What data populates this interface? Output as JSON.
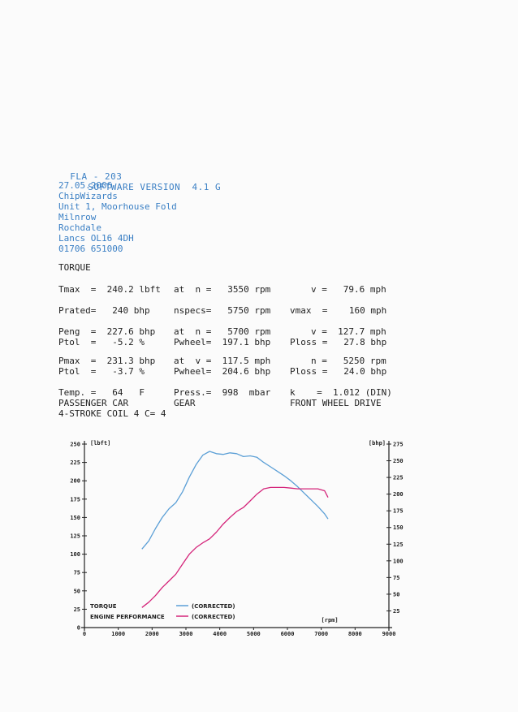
{
  "header": {
    "model": "FLA - 203",
    "software": "SOFTWARE VERSION  4.1 G"
  },
  "address": [
    "27.05.2006",
    "ChipWizards",
    "Unit 1, Moorhouse Fold",
    "Milnrow",
    "Rochdale",
    "Lancs OL16 4DH",
    "01706 651000"
  ],
  "section_title": "TORQUE",
  "report_rows": [
    [
      [
        "Tmax  =  240.2 lbft",
        0
      ],
      [
        "at  n =   3550 rpm",
        142
      ],
      [
        "v =   79.6 mph",
        311
      ]
    ],
    [
      [
        "Prated=   240 bhp",
        0
      ],
      [
        "nspecs=   5750 rpm",
        142
      ],
      [
        "vmax  =    160 mph",
        285
      ]
    ],
    [
      [
        "Peng  =  227.6 bhp",
        0
      ],
      [
        "at  n =   5700 rpm",
        142
      ],
      [
        "v =  127.7 mph",
        311
      ]
    ],
    [
      [
        "Ptol  =   -5.2 %",
        0
      ],
      [
        "Pwheel=  197.1 bhp",
        142
      ],
      [
        "Ploss =   27.8 bhp",
        285
      ]
    ],
    [
      [
        "Pmax  =  231.3 bhp",
        0
      ],
      [
        "at  v =  117.5 mph",
        142
      ],
      [
        "n =   5250 rpm",
        311
      ]
    ],
    [
      [
        "Ptol  =   -3.7 %",
        0
      ],
      [
        "Pwheel=  204.6 bhp",
        142
      ],
      [
        "Ploss =   24.0 bhp",
        285
      ]
    ],
    [
      [
        "Temp. =   64   F",
        0
      ],
      [
        "Press.=  998  mbar",
        142
      ],
      [
        "k    =  1.012 (DIN)",
        285
      ]
    ],
    [
      [
        "PASSENGER CAR",
        0
      ],
      [
        "GEAR",
        142
      ],
      [
        "FRONT WHEEL DRIVE",
        285
      ]
    ],
    [
      [
        "4-STROKE COIL 4 C= 4",
        0
      ]
    ]
  ],
  "chart_data": {
    "type": "line",
    "x": [
      1700,
      1900,
      2100,
      2300,
      2500,
      2700,
      2900,
      3100,
      3300,
      3500,
      3700,
      3900,
      4100,
      4300,
      4500,
      4700,
      4900,
      5100,
      5300,
      5500,
      5700,
      5900,
      6100,
      6300,
      6500,
      6700,
      6900,
      7100,
      7200
    ],
    "series": [
      {
        "name": "TORQUE",
        "axis": "left",
        "color": "#5b9fd6",
        "values": [
          107,
          118,
          135,
          150,
          162,
          170,
          185,
          205,
          222,
          235,
          240,
          237,
          236,
          238,
          237,
          233,
          234,
          232,
          225,
          219,
          213,
          207,
          200,
          192,
          183,
          174,
          165,
          155,
          148
        ]
      },
      {
        "name": "ENGINE PERFORMANCE",
        "axis": "right",
        "color": "#d4247a",
        "values": [
          30,
          38,
          48,
          60,
          70,
          80,
          95,
          110,
          120,
          127,
          133,
          143,
          155,
          165,
          174,
          180,
          190,
          200,
          208,
          210,
          210,
          210,
          209,
          208,
          208,
          208,
          208,
          205,
          195
        ]
      }
    ],
    "x_axis": {
      "label": "[rpm]",
      "ticks": [
        "0",
        "1000",
        "2000",
        "3000",
        "4000",
        "5000",
        "6000",
        "7000",
        "8000",
        "9000"
      ],
      "range": [
        0,
        9000
      ]
    },
    "y_left": {
      "label": "[lbft]",
      "ticks": [
        "0",
        "25",
        "50",
        "75",
        "100",
        "125",
        "150",
        "175",
        "200",
        "225",
        "250"
      ],
      "range": [
        0,
        250
      ]
    },
    "y_right": {
      "label": "[bhp]",
      "ticks": [
        "25",
        "50",
        "75",
        "100",
        "125",
        "150",
        "175",
        "200",
        "225",
        "250",
        "275"
      ],
      "range": [
        0,
        275
      ]
    },
    "legend": [
      {
        "name": "TORQUE",
        "note": "(CORRECTED)",
        "color": "#5b9fd6"
      },
      {
        "name": "ENGINE PERFORMANCE",
        "note": "(CORRECTED)",
        "color": "#d4247a"
      }
    ],
    "legend_position": "bottom-left"
  },
  "style": {
    "blue": "#3a7fc4",
    "axis": "#222222"
  }
}
